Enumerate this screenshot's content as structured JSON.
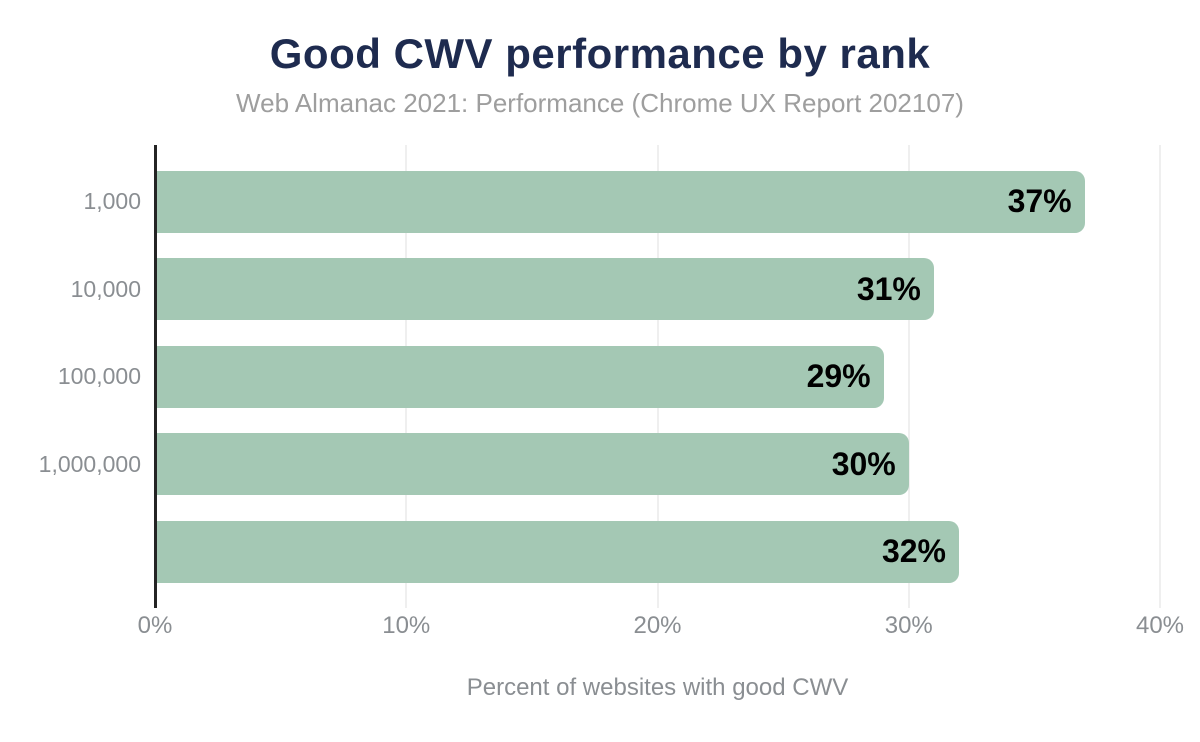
{
  "header": {
    "title": "Good CWV performance by rank",
    "subtitle": "Web Almanac 2021: Performance (Chrome UX Report 202107)"
  },
  "chart_data": {
    "type": "bar",
    "orientation": "horizontal",
    "title": "Good CWV performance by rank",
    "subtitle": "Web Almanac 2021: Performance (Chrome UX Report 202107)",
    "categories": [
      "1,000",
      "10,000",
      "100,000",
      "1,000,000",
      ""
    ],
    "values": [
      37,
      31,
      29,
      30,
      32
    ],
    "value_labels": [
      "37%",
      "31%",
      "29%",
      "30%",
      "32%"
    ],
    "xlabel": "Percent of websites with good CWV",
    "ylabel": "",
    "xlim": [
      0,
      40
    ],
    "x_ticks": [
      0,
      10,
      20,
      30,
      40
    ],
    "x_tick_labels": [
      "0%",
      "10%",
      "20%",
      "30%",
      "40%"
    ],
    "grid": "vertical-gridlines-on",
    "legend": "none"
  },
  "colors": {
    "background": "#ffffff",
    "title": "#1e2b4f",
    "subtitle": "#9e9e9e",
    "axis_text": "#8a8e92",
    "axis_line": "#242424",
    "gridline": "#efefef",
    "bar": "#a4c8b4",
    "value_label": "#000000"
  }
}
